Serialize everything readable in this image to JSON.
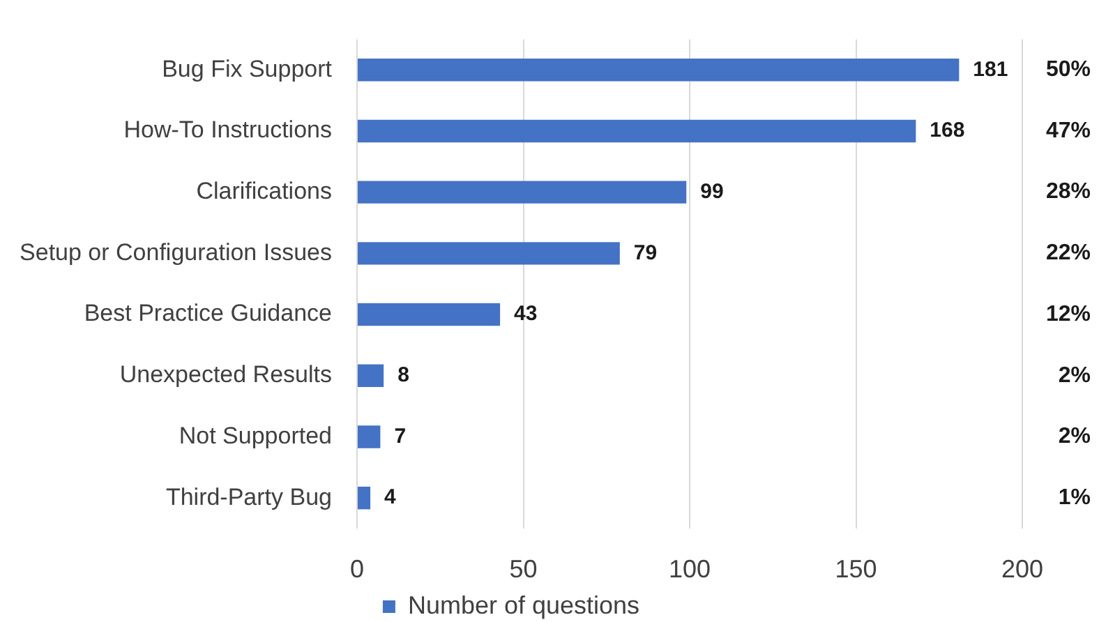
{
  "chart_data": {
    "type": "bar",
    "orientation": "horizontal",
    "categories": [
      "Bug Fix Support",
      "How-To Instructions",
      "Clarifications",
      "Setup or Configuration Issues",
      "Best Practice Guidance",
      "Unexpected Results",
      "Not Supported",
      "Third-Party Bug"
    ],
    "series": [
      {
        "name": "Number of questions",
        "color": "#4472c4",
        "values": [
          181,
          168,
          99,
          79,
          43,
          8,
          7,
          4
        ]
      }
    ],
    "xlim": [
      0,
      200
    ],
    "xticks": [
      0,
      50,
      100,
      150,
      200
    ],
    "grid": "x",
    "legend": "bottom",
    "data_labels": true,
    "annotations": [
      "50%",
      "47%",
      "28%",
      "22%",
      "12%",
      "2%",
      "2%",
      "1%"
    ]
  }
}
